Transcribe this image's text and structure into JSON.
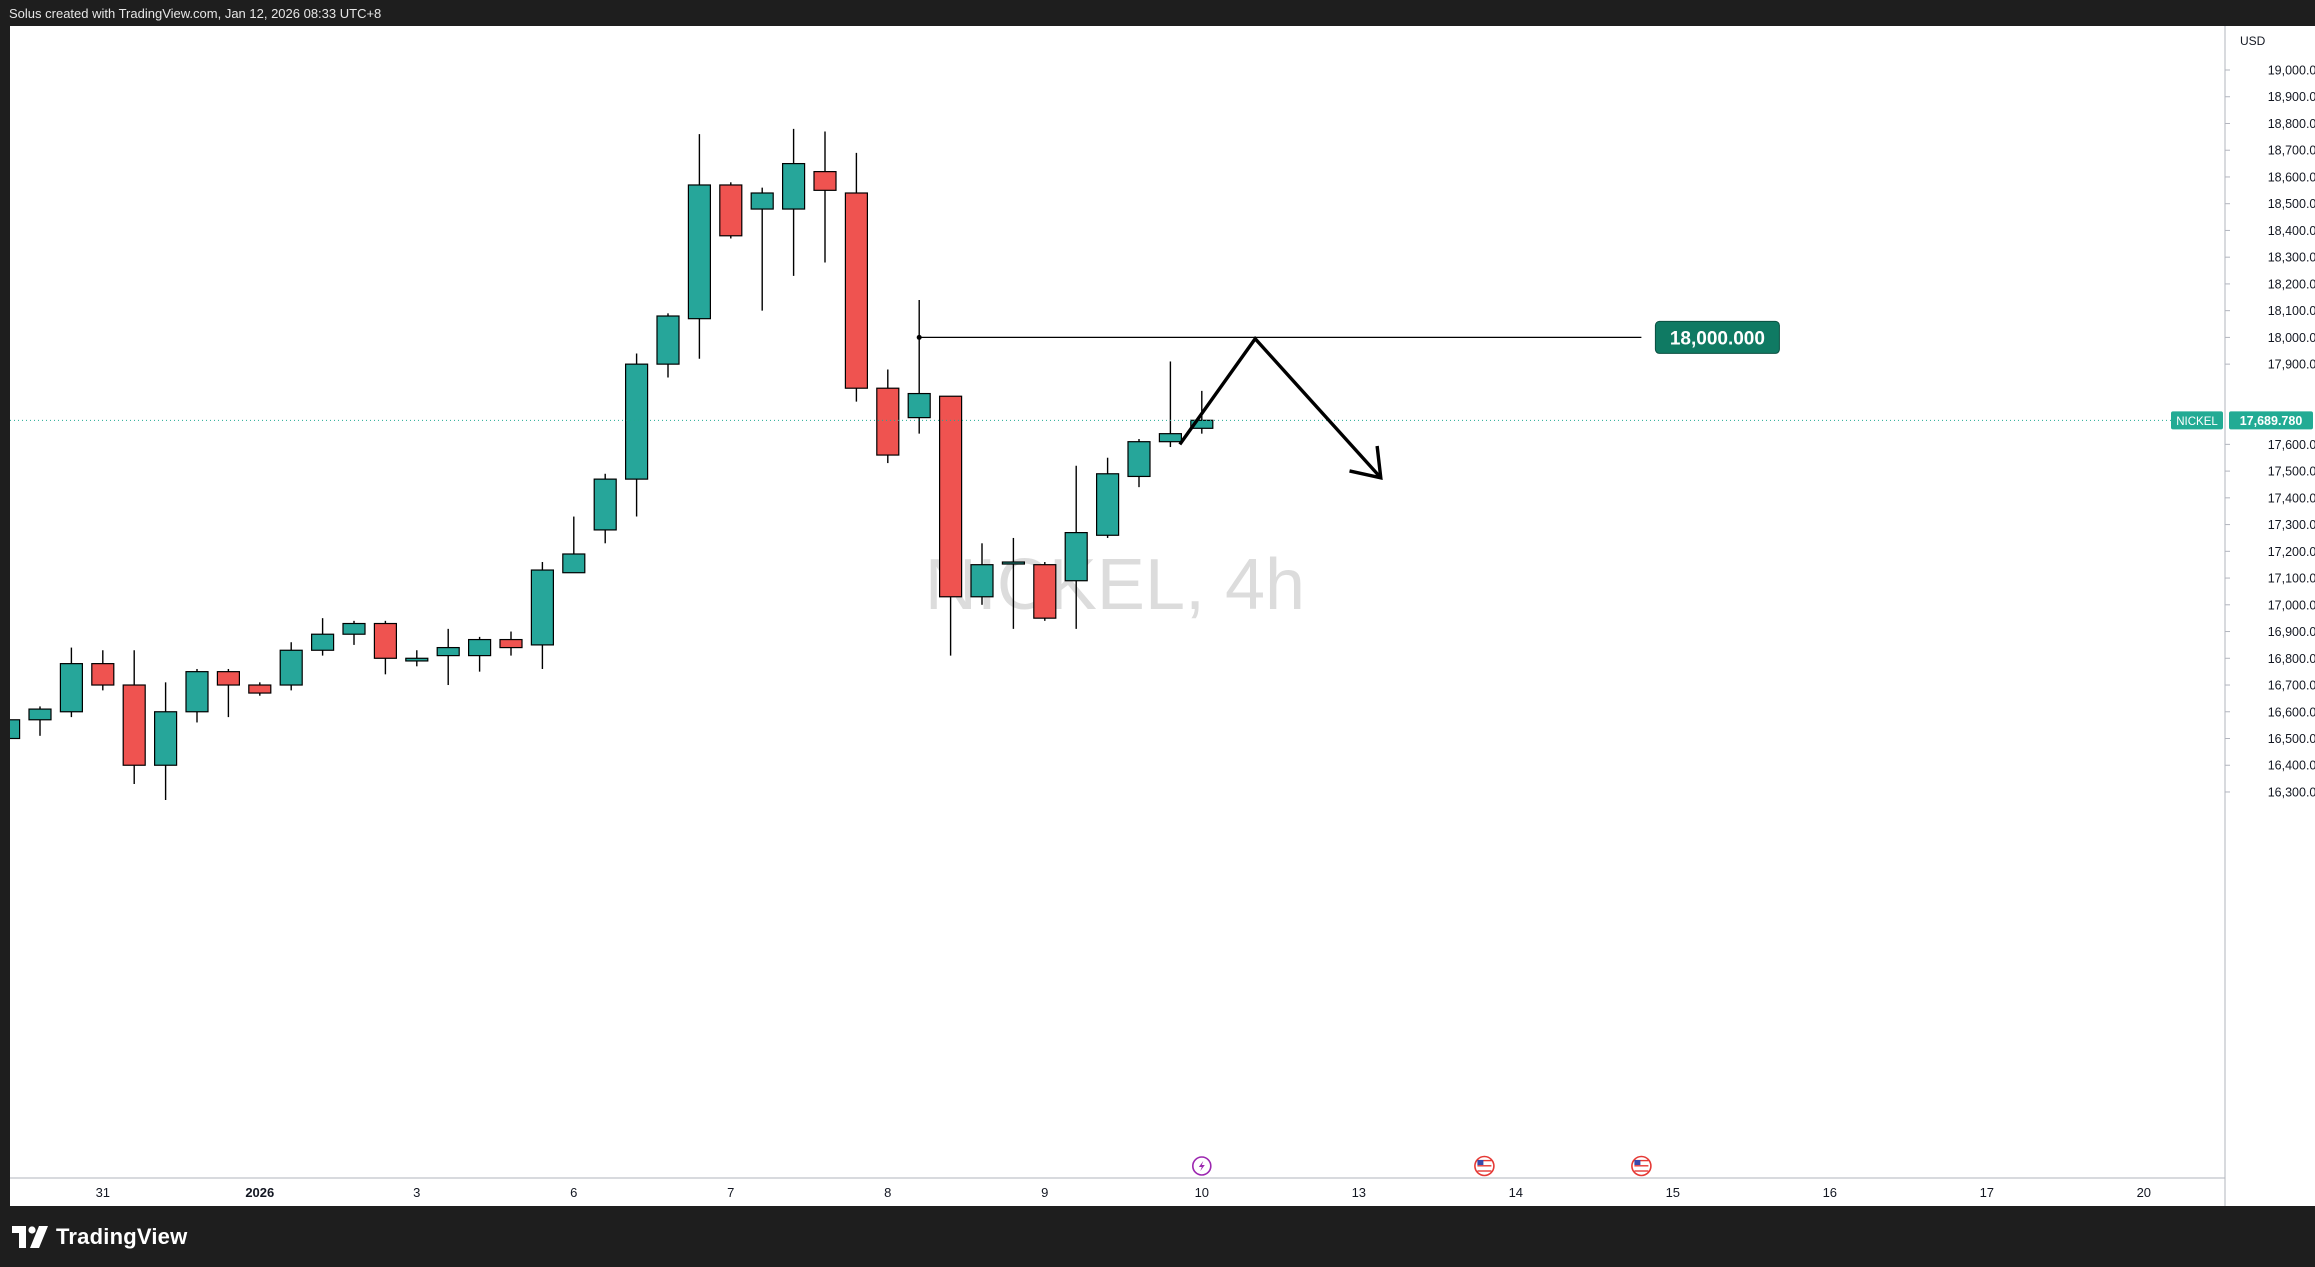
{
  "header": {
    "caption": "Solus created with TradingView.com, Jan 12, 2026 08:33 UTC+8"
  },
  "footer": {
    "logo_text": "TradingView"
  },
  "chart_data": {
    "type": "candlestick",
    "title": "NICKEL, 4h",
    "currency": "USD",
    "ylim": [
      16220,
      19050
    ],
    "y_ticks": [
      {
        "value": 16300,
        "label": "16,300.000"
      },
      {
        "value": 16400,
        "label": "16,400.000"
      },
      {
        "value": 16500,
        "label": "16,500.000"
      },
      {
        "value": 16600,
        "label": "16,600.000"
      },
      {
        "value": 16700,
        "label": "16,700.000"
      },
      {
        "value": 16800,
        "label": "16,800.000"
      },
      {
        "value": 16900,
        "label": "16,900.000"
      },
      {
        "value": 17000,
        "label": "17,000.000"
      },
      {
        "value": 17100,
        "label": "17,100.000"
      },
      {
        "value": 17200,
        "label": "17,200.000"
      },
      {
        "value": 17300,
        "label": "17,300.000"
      },
      {
        "value": 17400,
        "label": "17,400.000"
      },
      {
        "value": 17500,
        "label": "17,500.000"
      },
      {
        "value": 17600,
        "label": "17,600.000"
      },
      {
        "value": 17900,
        "label": "17,900.000"
      },
      {
        "value": 18000,
        "label": "18,000.000"
      },
      {
        "value": 18100,
        "label": "18,100.000"
      },
      {
        "value": 18200,
        "label": "18,200.000"
      },
      {
        "value": 18300,
        "label": "18,300.000"
      },
      {
        "value": 18400,
        "label": "18,400.000"
      },
      {
        "value": 18500,
        "label": "18,500.000"
      },
      {
        "value": 18600,
        "label": "18,600.000"
      },
      {
        "value": 18700,
        "label": "18,700.000"
      },
      {
        "value": 18800,
        "label": "18,800.000"
      },
      {
        "value": 18900,
        "label": "18,900.000"
      },
      {
        "value": 19000,
        "label": "19,000.000"
      }
    ],
    "x_ticks": [
      {
        "slot": 3,
        "label": "31"
      },
      {
        "slot": 8,
        "label": "2026",
        "bold": true
      },
      {
        "slot": 13,
        "label": "3"
      },
      {
        "slot": 18,
        "label": "6"
      },
      {
        "slot": 23,
        "label": "7"
      },
      {
        "slot": 28,
        "label": "8"
      },
      {
        "slot": 33,
        "label": "9"
      },
      {
        "slot": 38,
        "label": "10"
      },
      {
        "slot": 43,
        "label": "13"
      },
      {
        "slot": 48,
        "label": "14"
      },
      {
        "slot": 53,
        "label": "15"
      },
      {
        "slot": 58,
        "label": "16"
      },
      {
        "slot": 63,
        "label": "17"
      },
      {
        "slot": 68,
        "label": "20"
      }
    ],
    "candles": [
      {
        "o": 16500,
        "h": 16580,
        "l": 16450,
        "c": 16570
      },
      {
        "o": 16570,
        "h": 16620,
        "l": 16510,
        "c": 16610
      },
      {
        "o": 16600,
        "h": 16840,
        "l": 16580,
        "c": 16780
      },
      {
        "o": 16780,
        "h": 16830,
        "l": 16680,
        "c": 16700
      },
      {
        "o": 16700,
        "h": 16830,
        "l": 16330,
        "c": 16400
      },
      {
        "o": 16400,
        "h": 16710,
        "l": 16270,
        "c": 16600
      },
      {
        "o": 16600,
        "h": 16760,
        "l": 16560,
        "c": 16750
      },
      {
        "o": 16750,
        "h": 16760,
        "l": 16580,
        "c": 16700
      },
      {
        "o": 16700,
        "h": 16710,
        "l": 16660,
        "c": 16670
      },
      {
        "o": 16700,
        "h": 16860,
        "l": 16680,
        "c": 16830
      },
      {
        "o": 16830,
        "h": 16950,
        "l": 16810,
        "c": 16890
      },
      {
        "o": 16890,
        "h": 16940,
        "l": 16850,
        "c": 16930
      },
      {
        "o": 16930,
        "h": 16940,
        "l": 16740,
        "c": 16800
      },
      {
        "o": 16790,
        "h": 16830,
        "l": 16770,
        "c": 16800
      },
      {
        "o": 16810,
        "h": 16910,
        "l": 16700,
        "c": 16840
      },
      {
        "o": 16810,
        "h": 16880,
        "l": 16750,
        "c": 16870
      },
      {
        "o": 16870,
        "h": 16900,
        "l": 16810,
        "c": 16840
      },
      {
        "o": 16850,
        "h": 17160,
        "l": 16760,
        "c": 17130
      },
      {
        "o": 17120,
        "h": 17330,
        "l": 17120,
        "c": 17190
      },
      {
        "o": 17280,
        "h": 17490,
        "l": 17230,
        "c": 17470
      },
      {
        "o": 17470,
        "h": 17940,
        "l": 17330,
        "c": 17900
      },
      {
        "o": 17900,
        "h": 18090,
        "l": 17850,
        "c": 18080
      },
      {
        "o": 18070,
        "h": 18760,
        "l": 17920,
        "c": 18570
      },
      {
        "o": 18570,
        "h": 18580,
        "l": 18370,
        "c": 18380
      },
      {
        "o": 18480,
        "h": 18560,
        "l": 18100,
        "c": 18540
      },
      {
        "o": 18480,
        "h": 18780,
        "l": 18230,
        "c": 18650
      },
      {
        "o": 18620,
        "h": 18770,
        "l": 18280,
        "c": 18550
      },
      {
        "o": 18540,
        "h": 18690,
        "l": 17760,
        "c": 17810
      },
      {
        "o": 17810,
        "h": 17880,
        "l": 17530,
        "c": 17560
      },
      {
        "o": 17700,
        "h": 18140,
        "l": 17640,
        "c": 17790
      },
      {
        "o": 17780,
        "h": 17780,
        "l": 16810,
        "c": 17030
      },
      {
        "o": 17030,
        "h": 17230,
        "l": 17000,
        "c": 17150
      },
      {
        "o": 17160,
        "h": 17250,
        "l": 16910,
        "c": 17160
      },
      {
        "o": 17150,
        "h": 17160,
        "l": 16940,
        "c": 16950
      },
      {
        "o": 17090,
        "h": 17520,
        "l": 16910,
        "c": 17270
      },
      {
        "o": 17260,
        "h": 17550,
        "l": 17250,
        "c": 17490
      },
      {
        "o": 17480,
        "h": 17620,
        "l": 17440,
        "c": 17610
      },
      {
        "o": 17610,
        "h": 17910,
        "l": 17590,
        "c": 17640
      },
      {
        "o": 17660,
        "h": 17800,
        "l": 17640,
        "c": 17690
      }
    ],
    "horizontal_level": {
      "value": 18000,
      "label": "18,000.000",
      "start_slot": 29,
      "end_slot": 52
    },
    "projection_path": [
      {
        "slot": 37.3,
        "value": 17600
      },
      {
        "slot": 39.7,
        "value": 17995
      },
      {
        "slot": 43.7,
        "value": 17475
      }
    ],
    "current_price": {
      "value": 17689.78,
      "label": "17,689.780",
      "symbol": "NICKEL"
    },
    "event_markers": [
      {
        "slot": 38,
        "kind": "dividend"
      },
      {
        "slot": 47,
        "kind": "us-flag"
      },
      {
        "slot": 52,
        "kind": "us-flag"
      }
    ],
    "colors": {
      "up": "#26a69a",
      "down": "#ef5350",
      "wick": "#000000",
      "border": "#000000",
      "level_badge": "#0f7a63",
      "price_badge": "#22ab94",
      "watermark": "#d0d0d0",
      "axis_text": "#131722",
      "grid": "#e0e3eb"
    }
  }
}
